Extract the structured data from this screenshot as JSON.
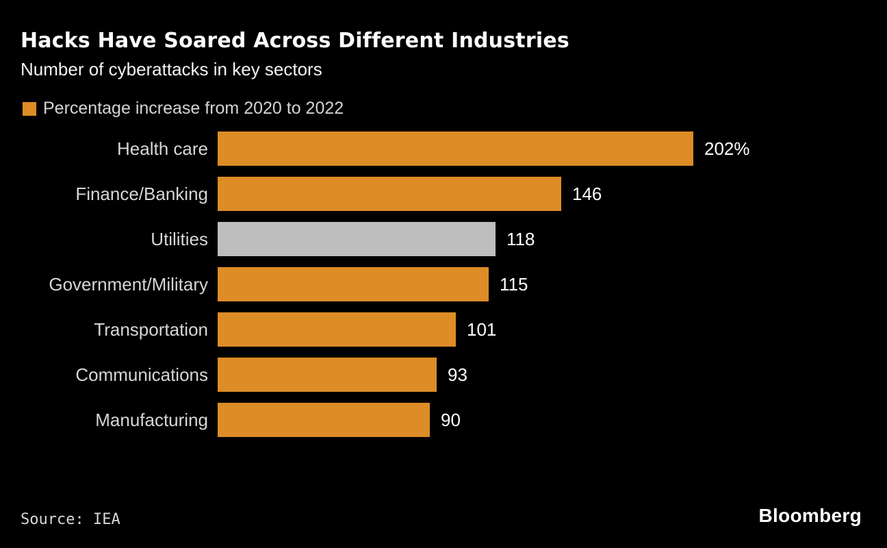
{
  "colors": {
    "background": "#000000",
    "accent_orange": "#DD8C26",
    "highlight_gray": "#BEBEBE",
    "title_text": "#FFFFFF",
    "label_text": "#D6D6D6",
    "value_text": "#FFFFFF"
  },
  "header": {
    "title": "Hacks Have Soared Across Different Industries",
    "subtitle": "Number of cyberattacks in key sectors"
  },
  "legend": {
    "label": "Percentage increase from 2020 to 2022",
    "swatch_color": "#DD8C26"
  },
  "chart_data": {
    "type": "bar",
    "orientation": "horizontal",
    "title": "Hacks Have Soared Across Different Industries",
    "subtitle": "Number of cyberattacks in key sectors",
    "series_name": "Percentage increase from 2020 to 2022",
    "categories": [
      "Health care",
      "Finance/Banking",
      "Utilities",
      "Government/Military",
      "Transportation",
      "Communications",
      "Manufacturing"
    ],
    "values": [
      202,
      146,
      118,
      115,
      101,
      93,
      90
    ],
    "value_labels": [
      "202%",
      "146",
      "118",
      "115",
      "101",
      "93",
      "90"
    ],
    "bar_colors": [
      "#DD8C26",
      "#DD8C26",
      "#BEBEBE",
      "#DD8C26",
      "#DD8C26",
      "#DD8C26",
      "#DD8C26"
    ],
    "highlight_category": "Utilities",
    "unit": "percent",
    "xlim": [
      0,
      202
    ],
    "grid": false,
    "axes_visible": false,
    "legend_position": "top-left",
    "value_label_position": "right-of-bar"
  },
  "footer": {
    "source": "Source: IEA",
    "brand": "Bloomberg"
  }
}
